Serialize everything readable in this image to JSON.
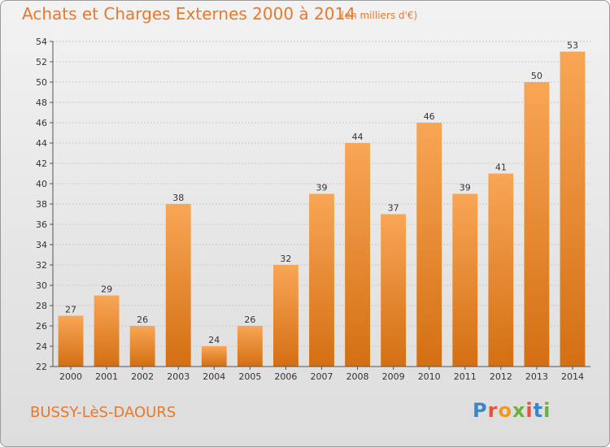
{
  "header": {
    "title": "Achats et Charges Externes 2000 à 2014",
    "subtitle": "(en milliers d'€)"
  },
  "footer": {
    "commune": "BUSSY-LèS-DAOURS",
    "logo": "Proxiti"
  },
  "colors": {
    "accent": "#e8782a",
    "bar_top": "#f8a656",
    "bar_bottom": "#d46f12"
  },
  "chart_data": {
    "type": "bar",
    "categories": [
      "2000",
      "2001",
      "2002",
      "2003",
      "2004",
      "2005",
      "2006",
      "2007",
      "2008",
      "2009",
      "2010",
      "2011",
      "2012",
      "2013",
      "2014"
    ],
    "values": [
      27,
      29,
      26,
      38,
      24,
      26,
      32,
      39,
      44,
      37,
      46,
      39,
      41,
      50,
      53
    ],
    "title": "Achats et Charges Externes 2000 à 2014",
    "subtitle": "(en milliers d'€)",
    "xlabel": "",
    "ylabel": "",
    "ylim": [
      22,
      54
    ],
    "yticks": [
      22,
      24,
      26,
      28,
      30,
      32,
      34,
      36,
      38,
      40,
      42,
      44,
      46,
      48,
      50,
      52,
      54
    ],
    "grid": true,
    "data_labels": true
  }
}
